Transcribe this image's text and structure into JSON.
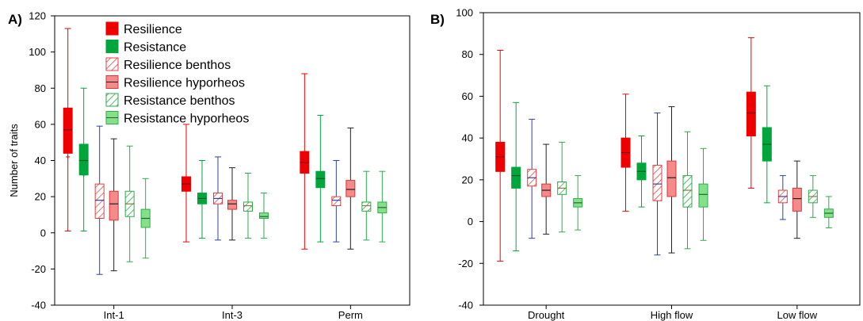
{
  "colors": {
    "resilience": "#ee0000",
    "resistance": "#00a63c",
    "resilience_light": "#f48a8a",
    "resistance_light": "#86e08a",
    "resilience_hatch": "#e04040",
    "resistance_hatch": "#2ea84c",
    "resilience_benthos_median": "#3040a0",
    "resistance_benthos_median": "#8a7a40"
  },
  "legend": {
    "items": [
      {
        "key": "resilience",
        "label": "Resilience",
        "style": "solid-red"
      },
      {
        "key": "resistance",
        "label": "Resistance",
        "style": "solid-green"
      },
      {
        "key": "resilience_benthos",
        "label": "Resilience benthos",
        "style": "hatch-red"
      },
      {
        "key": "resilience_hyporheos",
        "label": "Resilience hyporheos",
        "style": "light-red"
      },
      {
        "key": "resistance_benthos",
        "label": "Resistance benthos",
        "style": "hatch-green"
      },
      {
        "key": "resistance_hyporheos",
        "label": "Resistance hyporheos",
        "style": "light-green"
      }
    ]
  },
  "chart_data": [
    {
      "panel_label": "A)",
      "type": "box",
      "ylabel": "Number of traits",
      "xlabel": "",
      "ylim": [
        -40,
        120
      ],
      "yticks": [
        -40,
        -20,
        0,
        20,
        40,
        60,
        80,
        100,
        120
      ],
      "categories": [
        "Int-1",
        "Int-3",
        "Perm"
      ],
      "series": [
        {
          "name": "Resilience",
          "style": "solid-red",
          "boxes": [
            {
              "min": 1,
              "q1": 44,
              "median": 57,
              "q3": 69,
              "max": 113,
              "mean": 42
            },
            {
              "min": -5,
              "q1": 23,
              "median": 27,
              "q3": 31,
              "max": 60
            },
            {
              "min": -9,
              "q1": 33,
              "median": 39,
              "q3": 45,
              "max": 88
            }
          ]
        },
        {
          "name": "Resistance",
          "style": "solid-green",
          "boxes": [
            {
              "min": 1,
              "q1": 32,
              "median": 40,
              "q3": 49,
              "max": 80,
              "mean": 32
            },
            {
              "min": -3,
              "q1": 16,
              "median": 19,
              "q3": 22,
              "max": 40
            },
            {
              "min": -5,
              "q1": 25,
              "median": 30,
              "q3": 34,
              "max": 65
            }
          ]
        },
        {
          "name": "Resilience benthos",
          "style": "hatch-red",
          "boxes": [
            {
              "min": -23,
              "q1": 8,
              "median": 18,
              "q3": 27,
              "max": 59
            },
            {
              "min": -4,
              "q1": 16,
              "median": 19,
              "q3": 22,
              "max": 42
            },
            {
              "min": -5,
              "q1": 15,
              "median": 18,
              "q3": 20,
              "max": 40
            }
          ]
        },
        {
          "name": "Resilience hyporheos",
          "style": "light-red",
          "boxes": [
            {
              "min": -21,
              "q1": 7,
              "median": 16,
              "q3": 23,
              "max": 52
            },
            {
              "min": -4,
              "q1": 13,
              "median": 16,
              "q3": 18,
              "max": 36
            },
            {
              "min": -9,
              "q1": 20,
              "median": 24,
              "q3": 29,
              "max": 58
            }
          ]
        },
        {
          "name": "Resistance benthos",
          "style": "hatch-green",
          "boxes": [
            {
              "min": -16,
              "q1": 9,
              "median": 16,
              "q3": 23,
              "max": 48
            },
            {
              "min": -3,
              "q1": 12,
              "median": 15,
              "q3": 17,
              "max": 33
            },
            {
              "min": -4,
              "q1": 12,
              "median": 15,
              "q3": 17,
              "max": 34
            }
          ]
        },
        {
          "name": "Resistance hyporheos",
          "style": "light-green",
          "boxes": [
            {
              "min": -14,
              "q1": 3,
              "median": 8,
              "q3": 13,
              "max": 30
            },
            {
              "min": -3,
              "q1": 8,
              "median": 9,
              "q3": 11,
              "max": 22
            },
            {
              "min": -5,
              "q1": 11,
              "median": 14,
              "q3": 17,
              "max": 34
            }
          ]
        }
      ]
    },
    {
      "panel_label": "B)",
      "type": "box",
      "ylabel": "",
      "xlabel": "",
      "ylim": [
        -40,
        100
      ],
      "yticks": [
        -40,
        -20,
        0,
        20,
        40,
        60,
        80,
        100
      ],
      "categories": [
        "Drought",
        "High flow",
        "Low flow"
      ],
      "series": [
        {
          "name": "Resilience",
          "style": "solid-red",
          "boxes": [
            {
              "min": -19,
              "q1": 24,
              "median": 31,
              "q3": 38,
              "max": 82
            },
            {
              "min": 5,
              "q1": 26,
              "median": 33,
              "q3": 40,
              "max": 61
            },
            {
              "min": 16,
              "q1": 41,
              "median": 52,
              "q3": 62,
              "max": 88
            }
          ]
        },
        {
          "name": "Resistance",
          "style": "solid-green",
          "boxes": [
            {
              "min": -14,
              "q1": 16,
              "median": 22,
              "q3": 26,
              "max": 57
            },
            {
              "min": 7,
              "q1": 20,
              "median": 24,
              "q3": 28,
              "max": 41
            },
            {
              "min": 9,
              "q1": 29,
              "median": 37,
              "q3": 45,
              "max": 65
            }
          ]
        },
        {
          "name": "Resilience benthos",
          "style": "hatch-red",
          "boxes": [
            {
              "min": -8,
              "q1": 17,
              "median": 21,
              "q3": 25,
              "max": 49
            },
            {
              "min": -16,
              "q1": 10,
              "median": 18,
              "q3": 27,
              "max": 52
            },
            {
              "min": 1,
              "q1": 9,
              "median": 12,
              "q3": 15,
              "max": 22
            }
          ]
        },
        {
          "name": "Resilience hyporheos",
          "style": "light-red",
          "boxes": [
            {
              "min": -6,
              "q1": 12,
              "median": 15,
              "q3": 18,
              "max": 37
            },
            {
              "min": -15,
              "q1": 12,
              "median": 21,
              "q3": 29,
              "max": 55
            },
            {
              "min": -8,
              "q1": 5,
              "median": 11,
              "q3": 16,
              "max": 29
            }
          ]
        },
        {
          "name": "Resistance benthos",
          "style": "hatch-green",
          "boxes": [
            {
              "min": -5,
              "q1": 13,
              "median": 16,
              "q3": 19,
              "max": 38
            },
            {
              "min": -13,
              "q1": 7,
              "median": 15,
              "q3": 22,
              "max": 43
            },
            {
              "min": 2,
              "q1": 9,
              "median": 12,
              "q3": 15,
              "max": 22
            }
          ]
        },
        {
          "name": "Resistance hyporheos",
          "style": "light-green",
          "boxes": [
            {
              "min": -4,
              "q1": 7,
              "median": 9,
              "q3": 11,
              "max": 22
            },
            {
              "min": -9,
              "q1": 7,
              "median": 13,
              "q3": 18,
              "max": 35
            },
            {
              "min": -3,
              "q1": 2,
              "median": 4,
              "q3": 6,
              "max": 12
            }
          ]
        }
      ]
    }
  ]
}
